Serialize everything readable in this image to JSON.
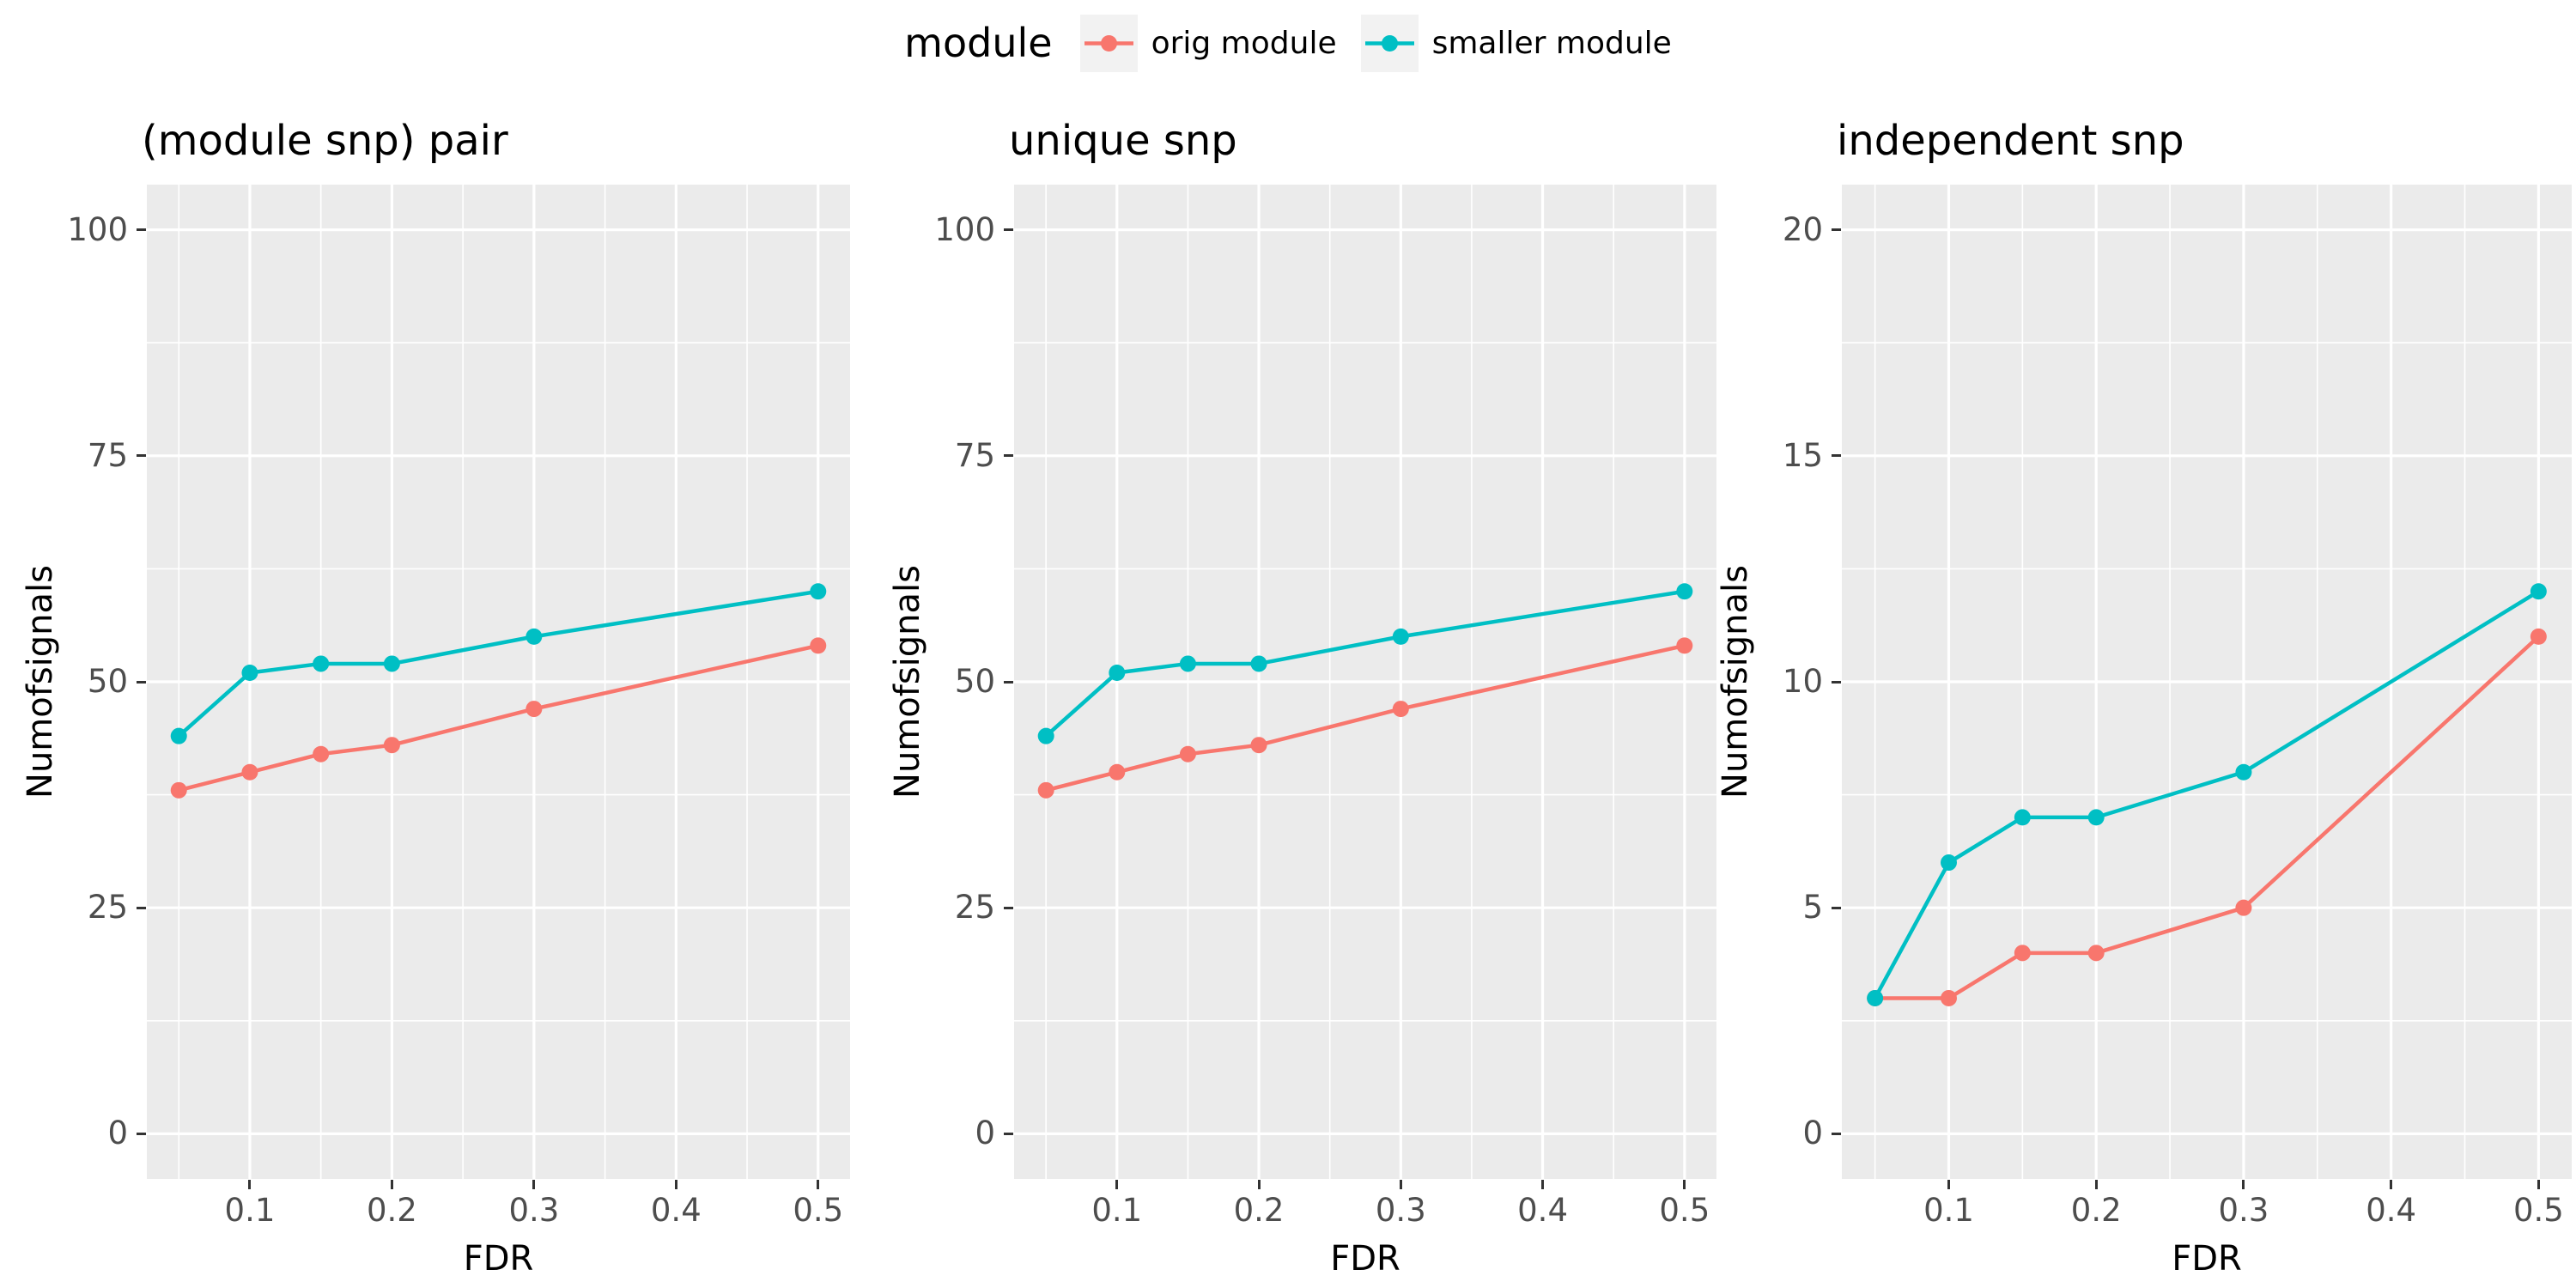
{
  "legend": {
    "title": "module",
    "position": "top",
    "entries": [
      {
        "label": "orig module",
        "color": "#F8766D"
      },
      {
        "label": "smaller module",
        "color": "#00BFC4"
      }
    ]
  },
  "style": {
    "background": "#FFFFFF",
    "panel_background": "#EBEBEB",
    "grid_color": "#FFFFFF",
    "tick_mark_color": "#333333",
    "tick_label_color": "#4D4D4D",
    "title_color": "#000000",
    "legend_key_background": "#F2F2F2"
  },
  "chart_data": [
    {
      "type": "line",
      "title": "(module snp) pair",
      "xlabel": "FDR",
      "ylabel": "Numofsignals",
      "x": [
        0.05,
        0.1,
        0.15,
        0.2,
        0.3,
        0.5
      ],
      "series": [
        {
          "name": "orig module",
          "color": "#F8766D",
          "values": [
            38,
            40,
            42,
            43,
            47,
            54
          ]
        },
        {
          "name": "smaller module",
          "color": "#00BFC4",
          "values": [
            44,
            51,
            52,
            52,
            55,
            60
          ]
        }
      ],
      "xlim": [
        0.05,
        0.5
      ],
      "ylim": [
        0,
        100
      ],
      "xticks": [
        0.1,
        0.2,
        0.3,
        0.4,
        0.5
      ],
      "yticks": [
        0,
        25,
        50,
        75,
        100
      ],
      "grid": true,
      "legend_position": "top"
    },
    {
      "type": "line",
      "title": "unique snp",
      "xlabel": "FDR",
      "ylabel": "Numofsignals",
      "x": [
        0.05,
        0.1,
        0.15,
        0.2,
        0.3,
        0.5
      ],
      "series": [
        {
          "name": "orig module",
          "color": "#F8766D",
          "values": [
            38,
            40,
            42,
            43,
            47,
            54
          ]
        },
        {
          "name": "smaller module",
          "color": "#00BFC4",
          "values": [
            44,
            51,
            52,
            52,
            55,
            60
          ]
        }
      ],
      "xlim": [
        0.05,
        0.5
      ],
      "ylim": [
        0,
        100
      ],
      "xticks": [
        0.1,
        0.2,
        0.3,
        0.4,
        0.5
      ],
      "yticks": [
        0,
        25,
        50,
        75,
        100
      ],
      "grid": true,
      "legend_position": "top"
    },
    {
      "type": "line",
      "title": "independent snp",
      "xlabel": "FDR",
      "ylabel": "Numofsignals",
      "x": [
        0.05,
        0.1,
        0.15,
        0.2,
        0.3,
        0.5
      ],
      "series": [
        {
          "name": "orig module",
          "color": "#F8766D",
          "values": [
            3,
            3,
            4,
            4,
            5,
            11
          ]
        },
        {
          "name": "smaller module",
          "color": "#00BFC4",
          "values": [
            3,
            6,
            7,
            7,
            8,
            12
          ]
        }
      ],
      "xlim": [
        0.05,
        0.5
      ],
      "ylim": [
        0,
        20
      ],
      "xticks": [
        0.1,
        0.2,
        0.3,
        0.4,
        0.5
      ],
      "yticks": [
        0,
        5,
        10,
        15,
        20
      ],
      "grid": true,
      "legend_position": "top"
    }
  ]
}
